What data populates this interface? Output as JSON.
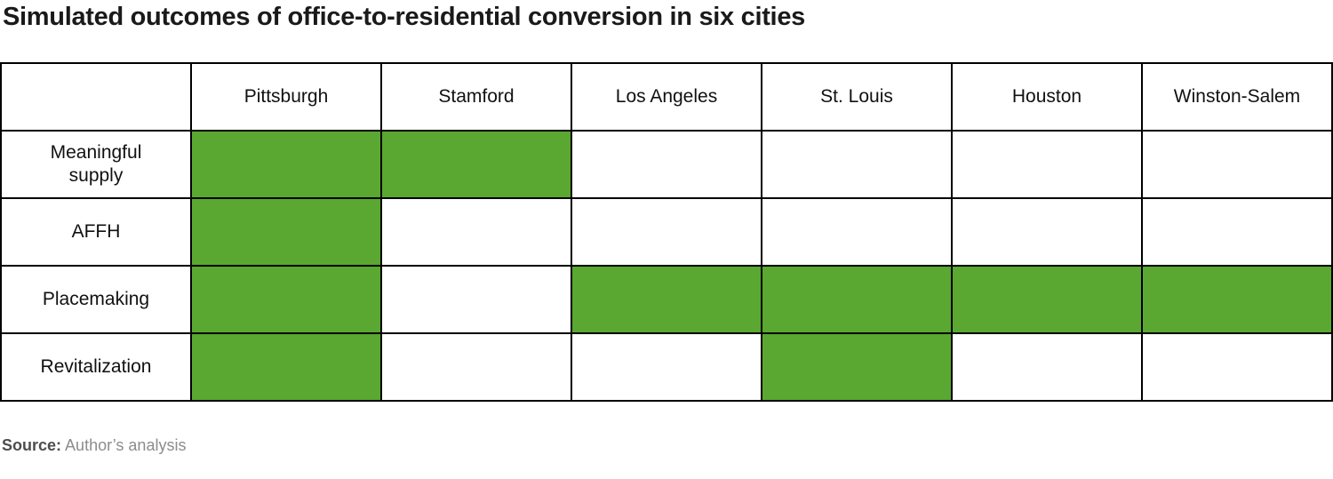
{
  "title": "Simulated outcomes of office-to-residential conversion in six cities",
  "source": {
    "label": "Source:",
    "text": "Author’s analysis"
  },
  "colors": {
    "highlight_green": "#5aa732",
    "table_border": "#000000",
    "title_text": "#1a1a1a",
    "cell_text": "#111111",
    "source_label_text": "#4d4d4d",
    "source_text": "#8c8c8c"
  },
  "chart_data": {
    "type": "table",
    "title": "Simulated outcomes of office-to-residential conversion in six cities",
    "columns": [
      "Pittsburgh",
      "Stamford",
      "Los Angeles",
      "St. Louis",
      "Houston",
      "Winston-Salem"
    ],
    "row_header_column": "",
    "rows": [
      {
        "label": "Meaningful supply",
        "highlighted": [
          true,
          true,
          false,
          false,
          false,
          false
        ]
      },
      {
        "label": "AFFH",
        "highlighted": [
          true,
          false,
          false,
          false,
          false,
          false
        ]
      },
      {
        "label": "Placemaking",
        "highlighted": [
          true,
          false,
          true,
          true,
          true,
          true
        ]
      },
      {
        "label": "Revitalization",
        "highlighted": [
          true,
          false,
          false,
          true,
          false,
          false
        ]
      }
    ],
    "source": "Author’s analysis",
    "legend_position": "none",
    "grid": true
  }
}
